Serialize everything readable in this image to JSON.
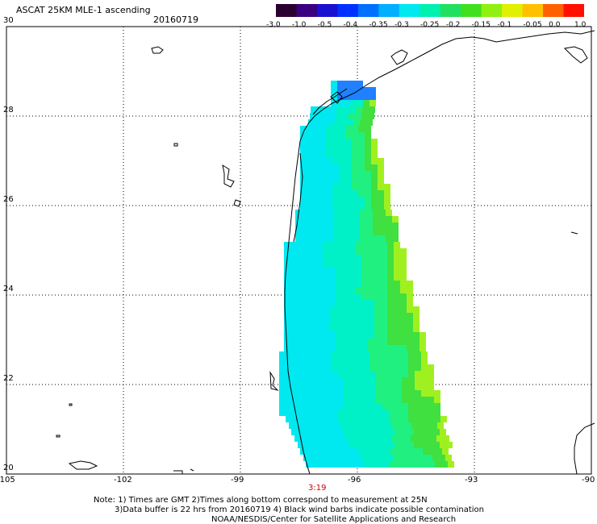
{
  "header": {
    "title": "ASCAT 25KM MLE-1 ascending",
    "date": "20160719"
  },
  "colorbar": {
    "labels": [
      "-3.0",
      "-1.0",
      "-0.5",
      "-0.4",
      "-0.35",
      "-0.3",
      "-0.25",
      "-0.2",
      "-0.15",
      "-0.1",
      "-0.05",
      "0.0",
      "1.0"
    ],
    "colors": [
      "#2a0030",
      "#3a0080",
      "#1a10d0",
      "#0030ff",
      "#0070ff",
      "#00b0ff",
      "#00e8f0",
      "#00f0b0",
      "#20e060",
      "#40e020",
      "#90f010",
      "#e0f000",
      "#ffc000",
      "#ff6000",
      "#ff1000"
    ]
  },
  "axes": {
    "x_ticks": [
      "-105",
      "-102",
      "-99",
      "-96",
      "-93",
      "-90"
    ],
    "y_ticks": [
      "30",
      "28",
      "26",
      "24",
      "22",
      "20"
    ]
  },
  "time_label": "3:19",
  "notes": {
    "line1": "Note: 1) Times are GMT 2)Times along bottom correspond to measurement at 25N",
    "line2": "3)Data buffer is 22 hrs from 20160719 4) Black wind barbs indicate possible contamination",
    "line3": "NOAA/NESDIS/Center for Satellite Applications and Research"
  }
}
